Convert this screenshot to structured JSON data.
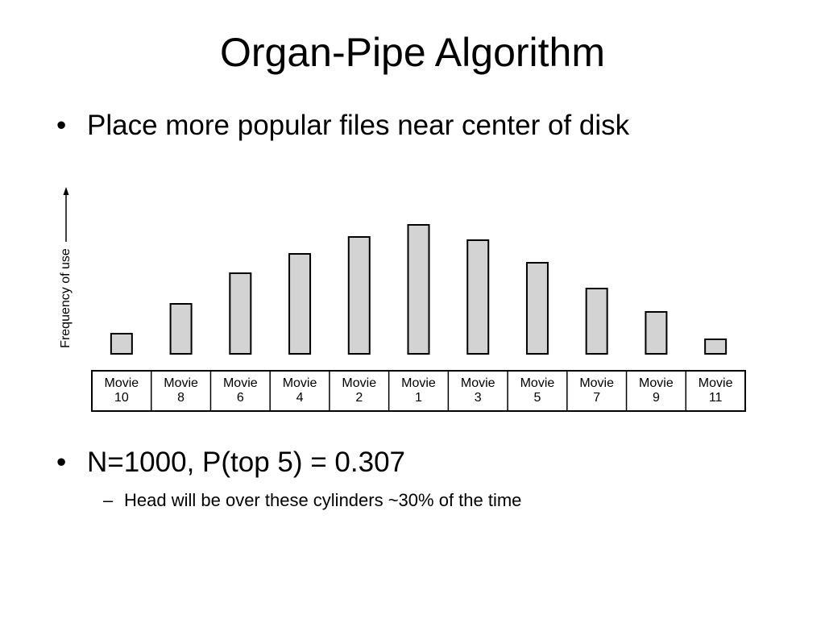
{
  "title": "Organ-Pipe Algorithm",
  "bullets": [
    {
      "text": "Place more popular files near center of disk"
    },
    {
      "text": "N=1000, P(top 5) = 0.307"
    }
  ],
  "sub_bullets": [
    {
      "text": "Head will be over these cylinders ~30% of the time"
    }
  ],
  "chart_data": {
    "type": "bar",
    "y_label": "Frequency of use",
    "categories": [
      "Movie 10",
      "Movie 8",
      "Movie 6",
      "Movie 4",
      "Movie 2",
      "Movie 1",
      "Movie 3",
      "Movie 5",
      "Movie 7",
      "Movie 9",
      "Movie 11"
    ],
    "values": [
      25,
      62,
      100,
      124,
      145,
      160,
      141,
      113,
      81,
      52,
      18
    ],
    "color": "#d3d3d3",
    "ylim": [
      0,
      200
    ]
  }
}
